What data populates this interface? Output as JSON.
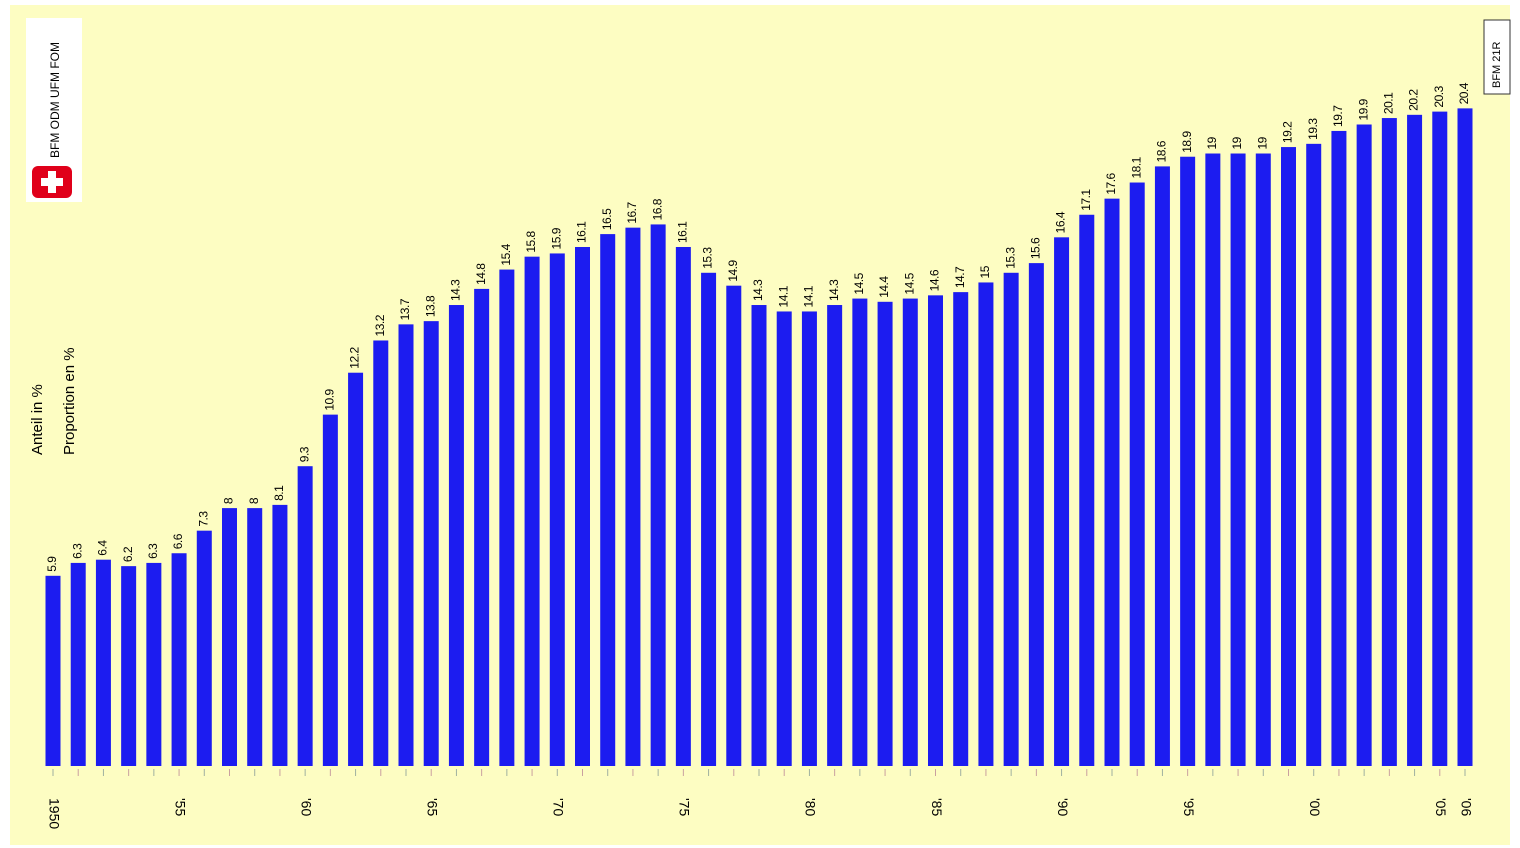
{
  "chart_data": {
    "type": "bar",
    "y_axis_labels": [
      "Anteil in %",
      "Proportion en %"
    ],
    "logo_text": "BFM ODM UFM FOM",
    "code": "BFM 21R",
    "categories": [
      "1950",
      null,
      null,
      null,
      null,
      "'55",
      null,
      null,
      null,
      null,
      "'60",
      null,
      null,
      null,
      null,
      "'65",
      null,
      null,
      null,
      null,
      "'70",
      null,
      null,
      null,
      null,
      "'75",
      null,
      null,
      null,
      null,
      "'80",
      null,
      null,
      null,
      null,
      "'85",
      null,
      null,
      null,
      null,
      "'90",
      null,
      null,
      null,
      null,
      "'95",
      null,
      null,
      null,
      null,
      "'00",
      null,
      null,
      null,
      null,
      "'05",
      "'06"
    ],
    "values": [
      5.9,
      6.3,
      6.4,
      6.2,
      6.3,
      6.6,
      7.3,
      8,
      8,
      8.1,
      9.3,
      10.9,
      12.2,
      13.2,
      13.7,
      13.8,
      14.3,
      14.8,
      15.4,
      15.8,
      15.9,
      16.1,
      16.5,
      16.7,
      16.8,
      16.1,
      15.3,
      14.9,
      14.3,
      14.1,
      14.1,
      14.3,
      14.5,
      14.4,
      14.5,
      14.6,
      14.7,
      15,
      15.3,
      15.6,
      16.4,
      17.1,
      17.6,
      18.1,
      18.6,
      18.9,
      19,
      19,
      19,
      19.2,
      19.3,
      19.7,
      19.9,
      20.1,
      20.2,
      20.3,
      20.4
    ],
    "color": "#1c1cf0",
    "ylim": [
      0,
      23.7
    ]
  }
}
